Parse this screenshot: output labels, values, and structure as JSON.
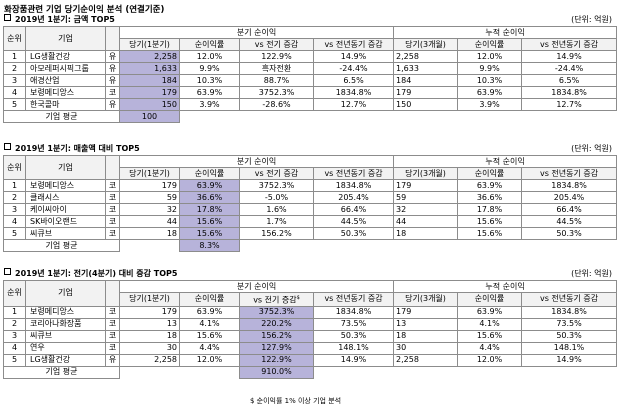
{
  "title": "화장품관련 기업 당기순이익 분석 (연결기준)",
  "sections": [
    {
      "title": "2019년 1분기: 금액 TOP5",
      "unit": "(단위: 억원)",
      "header": {
        "rank": "순위",
        "company": "기업",
        "blank": "",
        "group_q": "분기 순이익",
        "group_cum": "누적 순이익",
        "q_cols": [
          "당기(1분기)",
          "순이익률",
          "vs 전기 증감",
          "vs 전년동기 증감"
        ],
        "cum_cols": [
          "당기(3개월)",
          "순이익률",
          "vs 전년동기 증감"
        ]
      },
      "rows": [
        {
          "rank": "1",
          "company": "LG생활건강",
          "market": "유",
          "q": [
            "2,258",
            "12.0%",
            "122.9%",
            "14.9%"
          ],
          "cum": [
            "2,258",
            "12.0%",
            "14.9%"
          ]
        },
        {
          "rank": "2",
          "company": "아모레퍼시픽그룹",
          "market": "유",
          "q": [
            "1,633",
            "9.9%",
            "흑자전환",
            "-24.4%"
          ],
          "cum": [
            "1,633",
            "9.9%",
            "-24.4%"
          ]
        },
        {
          "rank": "3",
          "company": "애경산업",
          "market": "유",
          "q": [
            "184",
            "10.3%",
            "88.7%",
            "6.5%"
          ],
          "cum": [
            "184",
            "10.3%",
            "6.5%"
          ]
        },
        {
          "rank": "4",
          "company": "보령메디앙스",
          "market": "코",
          "q": [
            "179",
            "63.9%",
            "3752.3%",
            "1834.8%"
          ],
          "cum": [
            "179",
            "63.9%",
            "1834.8%"
          ]
        },
        {
          "rank": "5",
          "company": "한국콜마",
          "market": "유",
          "q": [
            "150",
            "3.9%",
            "-28.6%",
            "12.7%"
          ],
          "cum": [
            "150",
            "3.9%",
            "12.7%"
          ]
        }
      ],
      "avg": {
        "label": "기업 평균",
        "value": "100"
      },
      "highlight_col": 0
    },
    {
      "title": "2019년 1분기: 매출액 대비 TOP5",
      "unit": "(단위: 억원)",
      "header": {
        "rank": "순위",
        "company": "기업",
        "blank": "",
        "group_q": "분기 순이익",
        "group_cum": "누적 순이익",
        "q_cols": [
          "당기(1분기)",
          "순이익률",
          "vs 전기 증감",
          "vs 전년동기 증감"
        ],
        "cum_cols": [
          "당기(3개월)",
          "순이익률",
          "vs 전년동기 증감"
        ]
      },
      "rows": [
        {
          "rank": "1",
          "company": "보령메디앙스",
          "market": "코",
          "q": [
            "179",
            "63.9%",
            "3752.3%",
            "1834.8%"
          ],
          "cum": [
            "179",
            "63.9%",
            "1834.8%"
          ]
        },
        {
          "rank": "2",
          "company": "클래시스",
          "market": "코",
          "q": [
            "59",
            "36.6%",
            "-5.0%",
            "205.4%"
          ],
          "cum": [
            "59",
            "36.6%",
            "205.4%"
          ]
        },
        {
          "rank": "3",
          "company": "케이씨아이",
          "market": "코",
          "q": [
            "32",
            "17.8%",
            "1.6%",
            "66.4%"
          ],
          "cum": [
            "32",
            "17.8%",
            "66.4%"
          ]
        },
        {
          "rank": "4",
          "company": "SK바이오랜드",
          "market": "코",
          "q": [
            "44",
            "15.6%",
            "1.7%",
            "44.5%"
          ],
          "cum": [
            "44",
            "15.6%",
            "44.5%"
          ]
        },
        {
          "rank": "5",
          "company": "씨큐브",
          "market": "코",
          "q": [
            "18",
            "15.6%",
            "156.2%",
            "50.3%"
          ],
          "cum": [
            "18",
            "15.6%",
            "50.3%"
          ]
        }
      ],
      "avg": {
        "label": "기업 평균",
        "value": "8.3%"
      },
      "highlight_col": 1
    },
    {
      "title": "2019년 1분기: 전기(4분기) 대비 증감 TOP5",
      "unit": "(단위: 억원)",
      "header": {
        "rank": "순위",
        "company": "기업",
        "blank": "",
        "group_q": "분기 순이익",
        "group_cum": "누적 순이익",
        "q_cols": [
          "당기(1분기)",
          "순이익률",
          "vs 전기 증감",
          "vs 전년동기 증감"
        ],
        "q_col_sup": "$",
        "cum_cols": [
          "당기(3개월)",
          "순이익률",
          "vs 전년동기 증감"
        ]
      },
      "rows": [
        {
          "rank": "1",
          "company": "보령메디앙스",
          "market": "코",
          "q": [
            "179",
            "63.9%",
            "3752.3%",
            "1834.8%"
          ],
          "cum": [
            "179",
            "63.9%",
            "1834.8%"
          ]
        },
        {
          "rank": "2",
          "company": "코리아나화장품",
          "market": "코",
          "q": [
            "13",
            "4.1%",
            "220.2%",
            "73.5%"
          ],
          "cum": [
            "13",
            "4.1%",
            "73.5%"
          ]
        },
        {
          "rank": "3",
          "company": "씨큐브",
          "market": "코",
          "q": [
            "18",
            "15.6%",
            "156.2%",
            "50.3%"
          ],
          "cum": [
            "18",
            "15.6%",
            "50.3%"
          ]
        },
        {
          "rank": "4",
          "company": "연우",
          "market": "코",
          "q": [
            "30",
            "4.4%",
            "127.9%",
            "148.1%"
          ],
          "cum": [
            "30",
            "4.4%",
            "148.1%"
          ]
        },
        {
          "rank": "5",
          "company": "LG생활건강",
          "market": "유",
          "q": [
            "2,258",
            "12.0%",
            "122.9%",
            "14.9%"
          ],
          "cum": [
            "2,258",
            "12.0%",
            "14.9%"
          ]
        }
      ],
      "avg": {
        "label": "기업 평균",
        "value": "910.0%"
      },
      "highlight_col": 2
    }
  ],
  "footnote": "$ 순이익률 1% 이상 기업 분석",
  "colors": {
    "highlight": "#b7b3da",
    "header_bg": "#f2f2f2",
    "border": "#8c8c8c"
  }
}
